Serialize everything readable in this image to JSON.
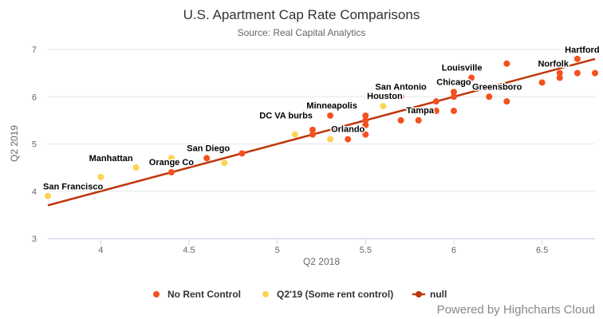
{
  "chart_data": {
    "type": "scatter",
    "title": "U.S. Apartment Cap Rate Comparisons",
    "subtitle": "Source: Real Capital Analytics",
    "xlabel": "Q2 2018",
    "ylabel": "Q2 2019",
    "xlim": [
      3.7,
      6.8
    ],
    "ylim": [
      3,
      7
    ],
    "xticks": [
      "4",
      "4.5",
      "5",
      "5.5",
      "6",
      "6.5"
    ],
    "yticks": [
      "3",
      "4",
      "5",
      "6",
      "7"
    ],
    "grid": "horizontal",
    "legend_position": "bottom-center",
    "series": [
      {
        "name": "No Rent Control",
        "color": "#f4511e",
        "points": [
          {
            "x": 4.4,
            "y": 4.4,
            "label": "Orange Co"
          },
          {
            "x": 4.6,
            "y": 4.7,
            "label": "San Diego"
          },
          {
            "x": 4.8,
            "y": 4.8
          },
          {
            "x": 5.2,
            "y": 5.2
          },
          {
            "x": 5.2,
            "y": 5.3,
            "label": "DC VA burbs"
          },
          {
            "x": 5.3,
            "y": 5.6,
            "label": "Minneapolis"
          },
          {
            "x": 5.4,
            "y": 5.1,
            "label": "Orlando"
          },
          {
            "x": 5.5,
            "y": 5.2
          },
          {
            "x": 5.5,
            "y": 5.4
          },
          {
            "x": 5.5,
            "y": 5.5
          },
          {
            "x": 5.5,
            "y": 5.6
          },
          {
            "x": 5.7,
            "y": 5.5
          },
          {
            "x": 5.7,
            "y": 6.0,
            "label": "San Antonio"
          },
          {
            "x": 5.8,
            "y": 5.5,
            "label": "Tampa"
          },
          {
            "x": 5.9,
            "y": 5.7
          },
          {
            "x": 5.9,
            "y": 5.9
          },
          {
            "x": 6.0,
            "y": 5.7
          },
          {
            "x": 6.0,
            "y": 6.0
          },
          {
            "x": 6.0,
            "y": 6.1,
            "label": "Chicago"
          },
          {
            "x": 6.1,
            "y": 6.4,
            "label": "Louisville"
          },
          {
            "x": 6.2,
            "y": 6.0,
            "label": "Greensboro"
          },
          {
            "x": 6.3,
            "y": 5.9
          },
          {
            "x": 6.3,
            "y": 6.7
          },
          {
            "x": 6.5,
            "y": 6.3
          },
          {
            "x": 6.6,
            "y": 6.4
          },
          {
            "x": 6.6,
            "y": 6.5,
            "label": "Norfolk"
          },
          {
            "x": 6.6,
            "y": 6.7
          },
          {
            "x": 6.7,
            "y": 6.5
          },
          {
            "x": 6.7,
            "y": 6.8,
            "label": "Hartford"
          },
          {
            "x": 6.8,
            "y": 6.5
          }
        ]
      },
      {
        "name": "Q2'19 (Some rent control)",
        "color": "#fdd353",
        "points": [
          {
            "x": 3.7,
            "y": 3.9,
            "label": "San Francisco"
          },
          {
            "x": 4.0,
            "y": 4.3
          },
          {
            "x": 4.2,
            "y": 4.5,
            "label": "Manhattan"
          },
          {
            "x": 4.4,
            "y": 4.7
          },
          {
            "x": 4.7,
            "y": 4.6
          },
          {
            "x": 5.1,
            "y": 5.2
          },
          {
            "x": 5.3,
            "y": 5.1
          },
          {
            "x": 5.6,
            "y": 5.8,
            "label": "Houston"
          }
        ]
      },
      {
        "name": "null",
        "color": "#bf360c",
        "type": "line",
        "points": [
          {
            "x": 3.7,
            "y": 3.7
          },
          {
            "x": 6.8,
            "y": 6.8
          }
        ]
      }
    ]
  },
  "credits": "Powered by Highcharts Cloud"
}
